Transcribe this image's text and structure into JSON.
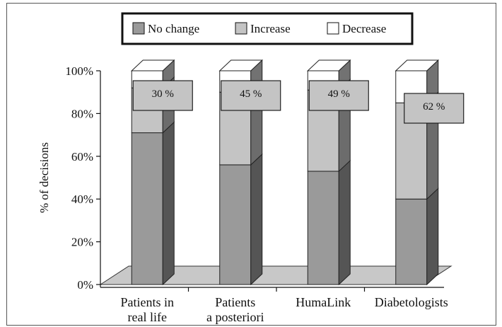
{
  "chart_data": {
    "type": "bar",
    "stacked": true,
    "three_d": true,
    "categories": [
      [
        "Patients in",
        "real life"
      ],
      [
        "Patients",
        "a posteriori"
      ],
      [
        "HumaLink"
      ],
      [
        "Diabetologists"
      ]
    ],
    "series": [
      {
        "name": "No change",
        "color": "#9a9a9a",
        "values": [
          71,
          56,
          53,
          40
        ]
      },
      {
        "name": "Increase",
        "color": "#c4c4c4",
        "values": [
          21,
          34,
          38,
          45
        ]
      },
      {
        "name": "Decrease",
        "color": "#ffffff",
        "values": [
          8,
          10,
          9,
          15
        ]
      }
    ],
    "annotations": [
      "30 %",
      "45 %",
      "49 %",
      "62 %"
    ],
    "ylabel": "% of decisions",
    "ylim": [
      0,
      100
    ],
    "yticks": [
      "0%",
      "20%",
      "40%",
      "60%",
      "80%",
      "100%"
    ],
    "legend_position": "top"
  }
}
